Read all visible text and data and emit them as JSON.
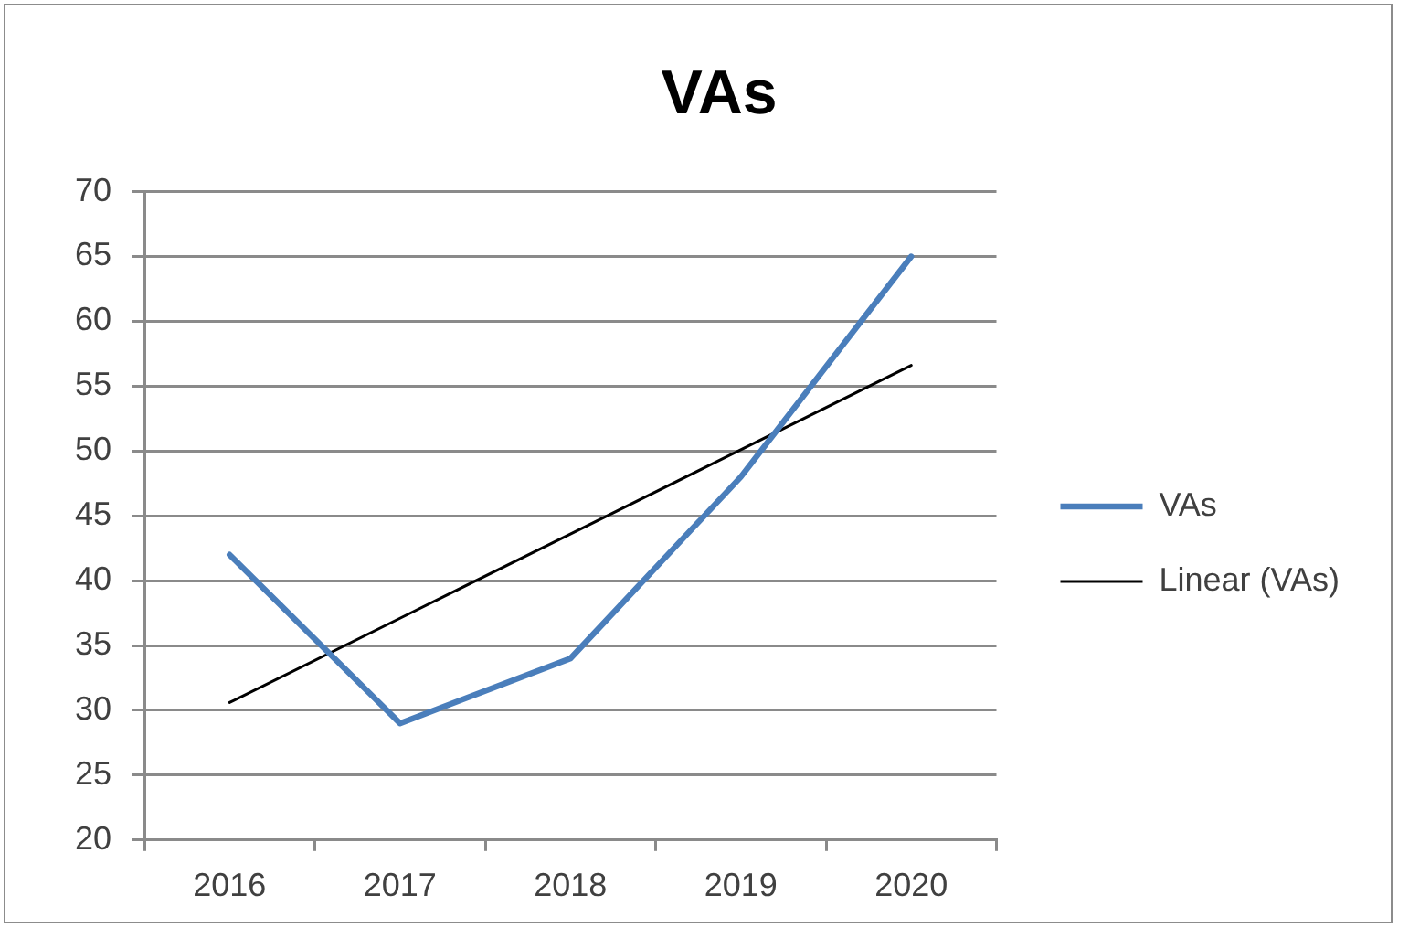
{
  "chart_data": {
    "type": "line",
    "title": "VAs",
    "categories": [
      "2016",
      "2017",
      "2018",
      "2019",
      "2020"
    ],
    "series": [
      {
        "name": "VAs",
        "color": "#4a7ebb",
        "values": [
          42,
          29,
          34,
          48,
          65
        ]
      },
      {
        "name": "Linear (VAs)",
        "color": "#000000",
        "values": [
          30.6,
          37.1,
          43.6,
          50.1,
          56.6
        ]
      }
    ],
    "ylim": [
      20,
      70
    ],
    "yticks": [
      20,
      25,
      30,
      35,
      40,
      45,
      50,
      55,
      60,
      65,
      70
    ],
    "grid": "y",
    "legend": "right",
    "marker": "none"
  }
}
